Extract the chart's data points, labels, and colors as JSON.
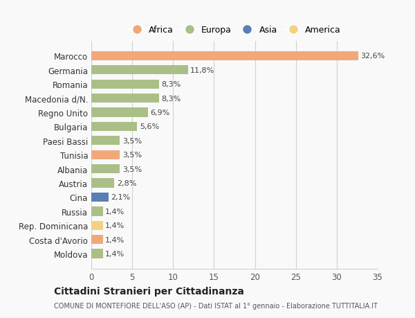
{
  "categories": [
    "Moldova",
    "Costa d'Avorio",
    "Rep. Dominicana",
    "Russia",
    "Cina",
    "Austria",
    "Albania",
    "Tunisia",
    "Paesi Bassi",
    "Bulgaria",
    "Regno Unito",
    "Macedonia d/N.",
    "Romania",
    "Germania",
    "Marocco"
  ],
  "values": [
    1.4,
    1.4,
    1.4,
    1.4,
    2.1,
    2.8,
    3.5,
    3.5,
    3.5,
    5.6,
    6.9,
    8.3,
    8.3,
    11.8,
    32.6
  ],
  "labels": [
    "1,4%",
    "1,4%",
    "1,4%",
    "1,4%",
    "2,1%",
    "2,8%",
    "3,5%",
    "3,5%",
    "3,5%",
    "5,6%",
    "6,9%",
    "8,3%",
    "8,3%",
    "11,8%",
    "32,6%"
  ],
  "continents": [
    "Europa",
    "Africa",
    "America",
    "Europa",
    "Asia",
    "Europa",
    "Europa",
    "Africa",
    "Europa",
    "Europa",
    "Europa",
    "Europa",
    "Europa",
    "Europa",
    "Africa"
  ],
  "continent_colors": {
    "Africa": "#F0A878",
    "Europa": "#AABF87",
    "Asia": "#5B7FB5",
    "America": "#F5D080"
  },
  "legend_order": [
    "Africa",
    "Europa",
    "Asia",
    "America"
  ],
  "legend_colors": {
    "Africa": "#F0A878",
    "Europa": "#AABF87",
    "Asia": "#5B7FB5",
    "America": "#F5D080"
  },
  "xlim": [
    0,
    35
  ],
  "xticks": [
    0,
    5,
    10,
    15,
    20,
    25,
    30,
    35
  ],
  "title": "Cittadini Stranieri per Cittadinanza",
  "subtitle": "COMUNE DI MONTEFIORE DELL'ASO (AP) - Dati ISTAT al 1° gennaio - Elaborazione TUTTITALIA.IT",
  "background_color": "#f9f9f9",
  "grid_color": "#d0d0d0"
}
